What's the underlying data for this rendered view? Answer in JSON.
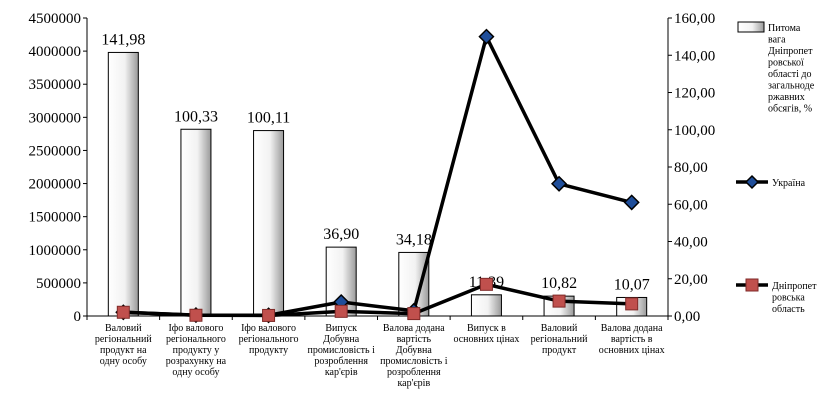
{
  "chart_data": {
    "type": "bar+line",
    "categories": [
      [
        "Валовий",
        "регіональний",
        "продукт на",
        "одну особу"
      ],
      [
        "Іфо валового",
        "регіонального",
        "продукту у",
        "розрахунку на",
        "одну особу"
      ],
      [
        "Іфо валового",
        "регіонального",
        "продукту"
      ],
      [
        "Випуск",
        "Добувна",
        "промисловість і",
        "розроблення",
        "кар'єрів"
      ],
      [
        "Валова додана",
        "вартість",
        "Добувна",
        "промисловість і",
        "розроблення",
        "кар'єрів"
      ],
      [
        "Випуск в",
        "основних цінах"
      ],
      [
        "Валовий",
        "регіональний",
        "продукт"
      ],
      [
        "Валова додана",
        "вартість в",
        "основних цінах"
      ]
    ],
    "left_axis": {
      "ylim": [
        0,
        4500000
      ],
      "ticks": [
        "0",
        "500000",
        "1000000",
        "1500000",
        "2000000",
        "2500000",
        "3000000",
        "3500000",
        "4000000",
        "4500000"
      ]
    },
    "right_axis": {
      "ylim": [
        0,
        160
      ],
      "ticks": [
        "0,00",
        "20,00",
        "40,00",
        "60,00",
        "80,00",
        "100,00",
        "120,00",
        "140,00",
        "160,00"
      ]
    },
    "series": [
      {
        "name": [
          "Питома",
          "вага",
          "Дніпропет",
          "ровської",
          "області до",
          "загальноде",
          "ржавних",
          "обсягів, %"
        ],
        "kind": "bar",
        "axis": "left",
        "values": [
          3980000,
          2820000,
          2800000,
          1040000,
          960000,
          320000,
          300000,
          280000
        ],
        "labels": [
          "141,98",
          "100,33",
          "100,11",
          "36,90",
          "34,18",
          "11,39",
          "10,82",
          "10,07"
        ],
        "color": "#d9d9d9"
      },
      {
        "name": [
          "Україна"
        ],
        "kind": "line",
        "axis": "right",
        "values": [
          2.0,
          0.5,
          0.4,
          7.5,
          2.8,
          150.0,
          71.0,
          61.0
        ],
        "color": "#000000",
        "marker_color": "#1f4e9a"
      },
      {
        "name": [
          "Дніпропет",
          "ровська",
          "область"
        ],
        "kind": "line",
        "axis": "right",
        "values": [
          2.0,
          0.4,
          0.3,
          2.5,
          1.3,
          17.0,
          8.0,
          6.5
        ],
        "color": "#000000",
        "marker_color": "#c0504d"
      }
    ]
  }
}
